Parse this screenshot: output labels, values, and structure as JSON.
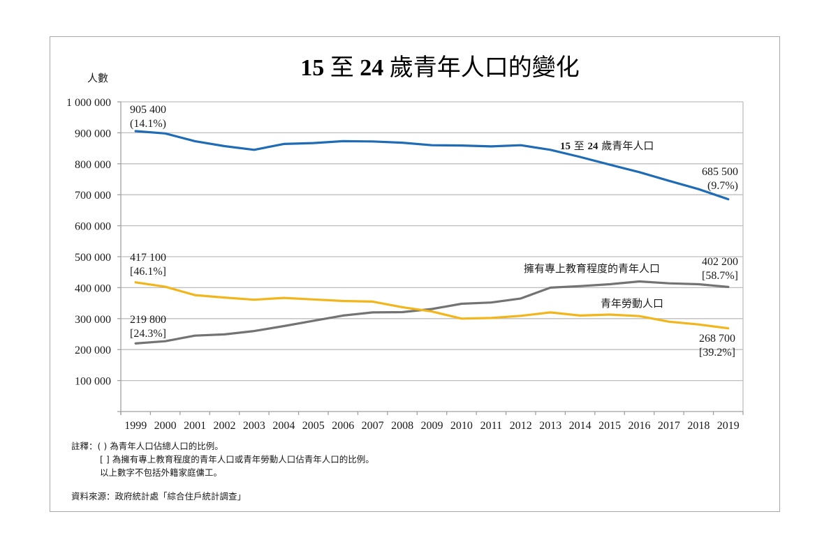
{
  "chart_data": {
    "type": "line",
    "title": "15 至 24 歲青年人口的變化",
    "title_parts": [
      {
        "text": "15",
        "bold": true
      },
      {
        "text": " 至 ",
        "bold": false
      },
      {
        "text": "24",
        "bold": true
      },
      {
        "text": " 歲青年人口的變化",
        "bold": false
      }
    ],
    "xlabel": "",
    "ylabel": "人數",
    "ylim": [
      0,
      1000000
    ],
    "yticks": [
      100000,
      200000,
      300000,
      400000,
      500000,
      600000,
      700000,
      800000,
      900000,
      1000000
    ],
    "ytick_labels": [
      "100 000",
      "200 000",
      "300 000",
      "400 000",
      "500 000",
      "600 000",
      "700 000",
      "800 000",
      "900 000",
      "1 000 000"
    ],
    "grid": true,
    "categories": [
      "1999",
      "2000",
      "2001",
      "2002",
      "2003",
      "2004",
      "2005",
      "2006",
      "2007",
      "2008",
      "2009",
      "2010",
      "2011",
      "2012",
      "2013",
      "2014",
      "2015",
      "2016",
      "2017",
      "2018",
      "2019"
    ],
    "series": [
      {
        "name": "15 至 24 歲青年人口",
        "color": "#1f6bb5",
        "values": [
          905400,
          898000,
          873000,
          857000,
          845000,
          864000,
          867000,
          873000,
          872000,
          868000,
          860000,
          859000,
          856000,
          860000,
          845000,
          822000,
          797000,
          773000,
          745000,
          718000,
          685500
        ],
        "start_label": [
          "905 400",
          "(14.1%)"
        ],
        "end_label": [
          "685 500",
          "(9.7%)"
        ]
      },
      {
        "name": "擁有專上教育程度的青年人口",
        "color": "#737373",
        "values": [
          219800,
          227000,
          245000,
          249000,
          260000,
          276000,
          293000,
          310000,
          320000,
          321000,
          331000,
          348000,
          352000,
          365000,
          400000,
          405000,
          411000,
          420000,
          414000,
          411000,
          402200
        ],
        "start_label": [
          "219 800",
          "[24.3%]"
        ],
        "end_label": [
          "402 200",
          "[58.7%]"
        ]
      },
      {
        "name": "青年勞動人口",
        "color": "#f2b51b",
        "values": [
          417100,
          403000,
          376000,
          368000,
          361000,
          367000,
          362000,
          357000,
          355000,
          337000,
          323000,
          300000,
          302000,
          309000,
          320000,
          310000,
          313000,
          308000,
          290000,
          281000,
          268700
        ],
        "start_label": [
          "417 100",
          "[46.1%]"
        ],
        "end_label": [
          "268 700",
          "[39.2%]"
        ]
      }
    ],
    "series_annotations": [
      {
        "series": 0,
        "parts": [
          {
            "text": "15",
            "bold": true
          },
          {
            "text": " 至 ",
            "bold": false
          },
          {
            "text": "24",
            "bold": true
          },
          {
            "text": " 歲青年人口",
            "bold": false
          }
        ]
      },
      {
        "series": 1,
        "text": "擁有專上教育程度的青年人口"
      },
      {
        "series": 2,
        "text": "青年勞動人口"
      }
    ],
    "legend": "none (inline labels)"
  },
  "notes": {
    "line1": "註釋：( ) 為青年人口佔總人口的比例。",
    "line2": "[ ] 為擁有專上教育程度的青年人口或青年勞動人口佔青年人口的比例。",
    "line3": "以上數字不包括外籍家庭傭工。",
    "source": "資料來源：政府統計處「綜合住戶統計調查」"
  }
}
